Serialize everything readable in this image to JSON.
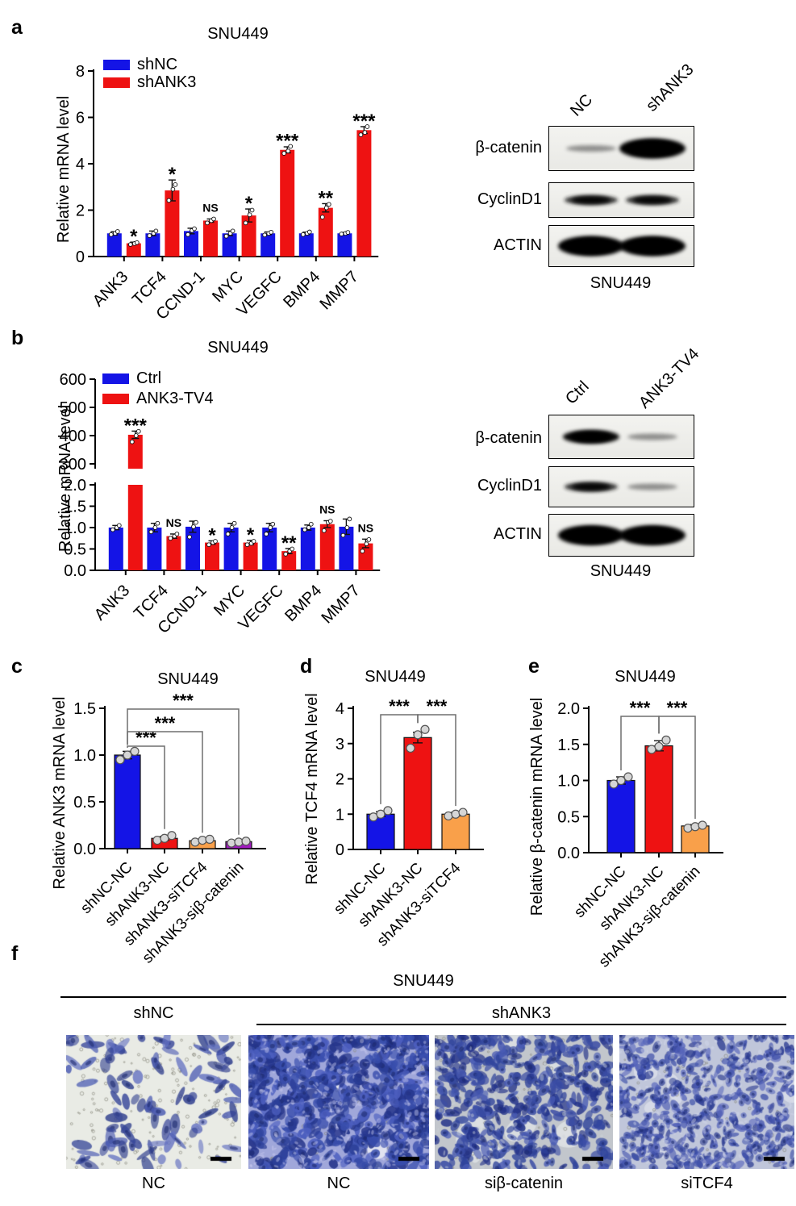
{
  "figure": {
    "panel_labels": {
      "a": "a",
      "b": "b",
      "c": "c",
      "d": "d",
      "e": "e",
      "f": "f"
    }
  },
  "colors": {
    "blue": "#1414E6",
    "red": "#EE1212",
    "orange": "#F9A04A",
    "purple": "#A21BC0",
    "point_fill": "#D6D6D6",
    "point_stroke": "#555555",
    "bracket": "#6E6E6E"
  },
  "chart_data": [
    {
      "id": "a",
      "type": "bar",
      "title": "SNU449",
      "ylabel": "Relative mRNA level",
      "categories": [
        "ANK3",
        "TCF4",
        "CCND-1",
        "MYC",
        "VEGFC",
        "BMP4",
        "MMP7"
      ],
      "ylim": [
        0,
        8
      ],
      "ytick_vals": [
        0,
        2,
        4,
        6,
        8
      ],
      "ytick_labels": [
        "0",
        "2",
        "4",
        "6",
        "8"
      ],
      "grid": false,
      "legend_position": "top-left",
      "series": [
        {
          "name": "shNC",
          "color": "blue",
          "values": [
            1.0,
            1.0,
            1.1,
            1.0,
            1.0,
            1.0,
            1.0
          ],
          "errors": [
            0.07,
            0.1,
            0.12,
            0.1,
            0.06,
            0.05,
            0.04
          ],
          "points": [
            [
              0.95,
              1.0,
              1.08
            ],
            [
              0.9,
              1.0,
              1.1
            ],
            [
              0.95,
              1.12,
              1.2
            ],
            [
              0.88,
              1.0,
              1.1
            ],
            [
              0.93,
              1.0,
              1.05
            ],
            [
              0.95,
              1.0,
              1.06
            ],
            [
              0.97,
              1.0,
              1.04
            ]
          ]
        },
        {
          "name": "shANK3",
          "color": "red",
          "values": [
            0.57,
            2.85,
            1.55,
            1.77,
            4.6,
            2.1,
            5.45
          ],
          "errors": [
            0.05,
            0.45,
            0.07,
            0.28,
            0.13,
            0.18,
            0.15
          ],
          "points": [
            [
              0.52,
              0.56,
              0.6
            ],
            [
              2.42,
              2.9,
              3.1
            ],
            [
              1.45,
              1.55,
              1.62
            ],
            [
              1.45,
              1.8,
              2.0
            ],
            [
              4.45,
              4.55,
              4.75
            ],
            [
              1.7,
              2.1,
              2.25
            ],
            [
              5.25,
              5.35,
              5.6
            ]
          ]
        }
      ],
      "significance": [
        "*",
        "*",
        "NS",
        "*",
        "***",
        "**",
        "***"
      ]
    },
    {
      "id": "b",
      "type": "bar",
      "title": "SNU449",
      "ylabel": "Relative mRNA level",
      "categories": [
        "ANK3",
        "TCF4",
        "CCND-1",
        "MYC",
        "VEGFC",
        "BMP4",
        "MMP7"
      ],
      "grid": false,
      "legend_position": "top-left",
      "axis_break": {
        "lower": {
          "lim": [
            0,
            2
          ],
          "tick_vals": [
            0,
            0.5,
            1,
            1.5,
            2
          ],
          "tick_labels": [
            "0.0",
            "0.5",
            "1.0",
            "1.5",
            "2.0"
          ]
        },
        "upper": {
          "lim": [
            300,
            600
          ],
          "tick_vals": [
            300,
            400,
            500,
            600
          ],
          "tick_labels": [
            "300",
            "400",
            "500",
            "600"
          ]
        }
      },
      "series": [
        {
          "name": "Ctrl",
          "color": "blue",
          "values": [
            1.0,
            1.0,
            1.02,
            1.0,
            1.0,
            1.0,
            1.02
          ],
          "errors": [
            0.05,
            0.1,
            0.13,
            0.1,
            0.1,
            0.06,
            0.18
          ],
          "points": [
            [
              0.95,
              1.0,
              1.05
            ],
            [
              0.9,
              1.0,
              1.1
            ],
            [
              0.78,
              1.02,
              1.12
            ],
            [
              0.85,
              1.0,
              1.1
            ],
            [
              0.85,
              1.0,
              1.08
            ],
            [
              0.95,
              1.0,
              1.08
            ],
            [
              0.82,
              1.0,
              1.2
            ]
          ]
        },
        {
          "name": "ANK3-TV4",
          "color": "red",
          "values": [
            403,
            0.8,
            0.65,
            0.65,
            0.45,
            1.08,
            0.63
          ],
          "errors": [
            13,
            0.05,
            0.04,
            0.05,
            0.06,
            0.08,
            0.1
          ],
          "points": [
            [
              378,
              400,
              415
            ],
            [
              0.75,
              0.8,
              0.85
            ],
            [
              0.6,
              0.65,
              0.68
            ],
            [
              0.6,
              0.63,
              0.68
            ],
            [
              0.38,
              0.45,
              0.5
            ],
            [
              0.93,
              1.12,
              1.15
            ],
            [
              0.45,
              0.62,
              0.72
            ]
          ]
        }
      ],
      "significance": [
        "***",
        "NS",
        "*",
        "*",
        "**",
        "NS",
        "NS"
      ]
    },
    {
      "id": "c",
      "type": "bar",
      "title": "SNU449",
      "ylabel": "Relative ANK3 mRNA level",
      "categories": [
        "shNC-NC",
        "shANK3-NC",
        "shANK3-siTCF4",
        "shANK3-siβ-catenin"
      ],
      "bar_colors": [
        "blue",
        "red",
        "orange",
        "purple"
      ],
      "values": [
        1.0,
        0.11,
        0.085,
        0.075
      ],
      "errors": [
        0.04,
        0.02,
        0.012,
        0.01
      ],
      "points": [
        [
          0.95,
          1.0,
          1.04
        ],
        [
          0.09,
          0.11,
          0.14
        ],
        [
          0.07,
          0.09,
          0.1
        ],
        [
          0.06,
          0.07,
          0.08
        ]
      ],
      "ylim": [
        0,
        1.5
      ],
      "ytick_vals": [
        0,
        0.5,
        1,
        1.5
      ],
      "ytick_labels": [
        "0.0",
        "0.5",
        "1.0",
        "1.5"
      ],
      "grid": false,
      "brackets": [
        {
          "from": 0,
          "to": 1,
          "label": "***"
        },
        {
          "from": 0,
          "to": 2,
          "label": "***"
        },
        {
          "from": 0,
          "to": 3,
          "label": "***"
        }
      ]
    },
    {
      "id": "d",
      "type": "bar",
      "title": "SNU449",
      "ylabel": "Relative TCF4 mRNA level",
      "categories": [
        "shNC-NC",
        "shANK3-NC",
        "shANK3-siTCF4"
      ],
      "bar_colors": [
        "blue",
        "red",
        "orange"
      ],
      "values": [
        1.0,
        3.17,
        1.0
      ],
      "errors": [
        0.07,
        0.15,
        0.05
      ],
      "points": [
        [
          0.92,
          1.0,
          1.1
        ],
        [
          2.87,
          3.25,
          3.4
        ],
        [
          0.95,
          1.0,
          1.05
        ]
      ],
      "ylim": [
        0,
        4
      ],
      "ytick_vals": [
        0,
        1,
        2,
        3,
        4
      ],
      "ytick_labels": [
        "0",
        "1",
        "2",
        "3",
        "4"
      ],
      "grid": false,
      "brackets": [
        {
          "from": 0,
          "to": 1,
          "label": "***"
        },
        {
          "from": 1,
          "to": 2,
          "label": "***"
        }
      ]
    },
    {
      "id": "e",
      "type": "bar",
      "title": "SNU449",
      "ylabel": "Relative β-catenin mRNA level",
      "categories": [
        "shNC-NC",
        "shANK3-NC",
        "shANK3-siβ-catenin"
      ],
      "bar_colors": [
        "blue",
        "red",
        "orange"
      ],
      "values": [
        1.0,
        1.48,
        0.37
      ],
      "errors": [
        0.05,
        0.07,
        0.02
      ],
      "points": [
        [
          0.95,
          1.0,
          1.05
        ],
        [
          1.43,
          1.47,
          1.56
        ],
        [
          0.34,
          0.36,
          0.38
        ]
      ],
      "ylim": [
        0,
        2
      ],
      "ytick_vals": [
        0,
        0.5,
        1,
        1.5,
        2
      ],
      "ytick_labels": [
        "0.0",
        "0.5",
        "1.0",
        "1.5",
        "2.0"
      ],
      "grid": false,
      "brackets": [
        {
          "from": 0,
          "to": 1,
          "label": "***"
        },
        {
          "from": 1,
          "to": 2,
          "label": "***"
        }
      ]
    }
  ],
  "blots": {
    "a": {
      "col_labels": [
        "NC",
        "shANK3"
      ],
      "rows": [
        {
          "label": "β-catenin",
          "bands": [
            "faint",
            "very-strong"
          ]
        },
        {
          "label": "CyclinD1",
          "bands": [
            "medium",
            "medium"
          ]
        },
        {
          "label": "ACTIN",
          "bands": [
            "very-strong",
            "very-strong"
          ]
        }
      ],
      "cell_line": "SNU449"
    },
    "b": {
      "col_labels": [
        "Ctrl",
        "ANK3-TV4"
      ],
      "rows": [
        {
          "label": "β-catenin",
          "bands": [
            "strong",
            "faint"
          ]
        },
        {
          "label": "CyclinD1",
          "bands": [
            "medium",
            "faint"
          ]
        },
        {
          "label": "ACTIN",
          "bands": [
            "very-strong",
            "very-strong"
          ]
        }
      ],
      "cell_line": "SNU449"
    }
  },
  "panel_f": {
    "title": "SNU449",
    "group_labels": [
      "shNC",
      "shANK3"
    ],
    "image_labels": [
      "NC",
      "NC",
      "siβ-catenin",
      "siTCF4"
    ],
    "image_styles": [
      "sparse",
      "dense",
      "dense-patchy",
      "dense-light"
    ]
  }
}
